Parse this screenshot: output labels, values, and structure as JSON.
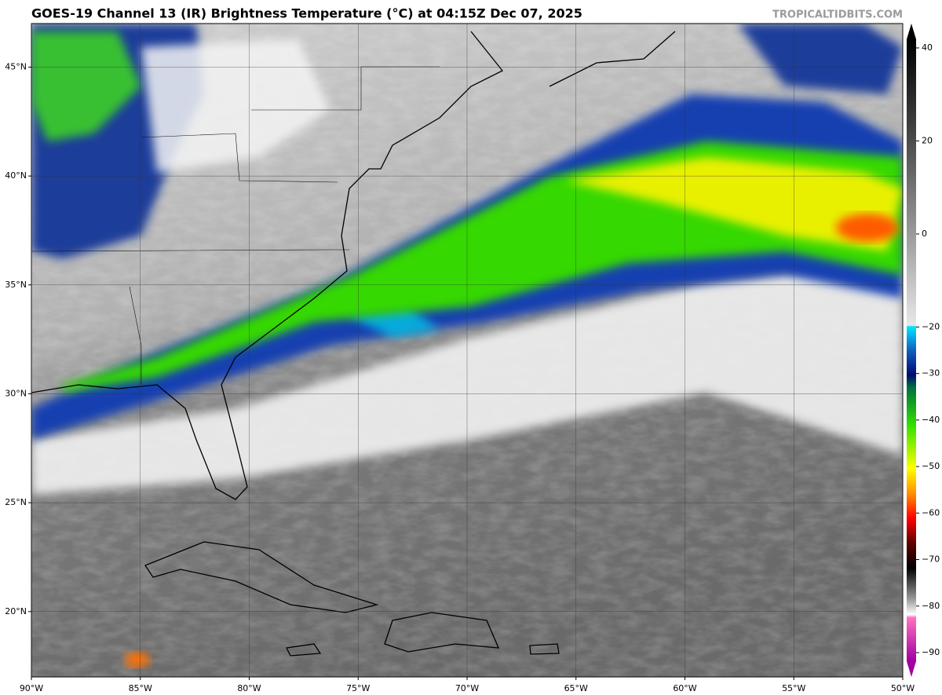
{
  "title": "GOES-19 Channel 13 (IR) Brightness Temperature (°C) at 04:15Z Dec 07, 2025",
  "watermark": "TROPICALTIDBITS.COM",
  "map": {
    "xlim": [
      -90,
      -50
    ],
    "ylim": [
      17,
      47
    ],
    "xticks": [
      {
        "value": -90,
        "label": "90°W"
      },
      {
        "value": -85,
        "label": "85°W"
      },
      {
        "value": -80,
        "label": "80°W"
      },
      {
        "value": -75,
        "label": "75°W"
      },
      {
        "value": -70,
        "label": "70°W"
      },
      {
        "value": -65,
        "label": "65°W"
      },
      {
        "value": -60,
        "label": "60°W"
      },
      {
        "value": -55,
        "label": "55°W"
      },
      {
        "value": -50,
        "label": "50°W"
      }
    ],
    "yticks": [
      {
        "value": 20,
        "label": "20°N"
      },
      {
        "value": 25,
        "label": "25°N"
      },
      {
        "value": 30,
        "label": "30°N"
      },
      {
        "value": 35,
        "label": "35°N"
      },
      {
        "value": 40,
        "label": "40°N"
      },
      {
        "value": 45,
        "label": "45°N"
      }
    ],
    "grid": true
  },
  "colorbar": {
    "lim": [
      -90,
      40
    ],
    "ticks": [
      40,
      20,
      0,
      {
        "value": -20,
        "label": "−20"
      },
      {
        "value": -30,
        "label": "−30"
      },
      {
        "value": -40,
        "label": "−40"
      },
      {
        "value": -50,
        "label": "−50"
      },
      {
        "value": -60,
        "label": "−60"
      },
      {
        "value": -70,
        "label": "−70"
      },
      {
        "value": -80,
        "label": "−80"
      },
      {
        "value": -90,
        "label": "−90"
      }
    ]
  }
}
